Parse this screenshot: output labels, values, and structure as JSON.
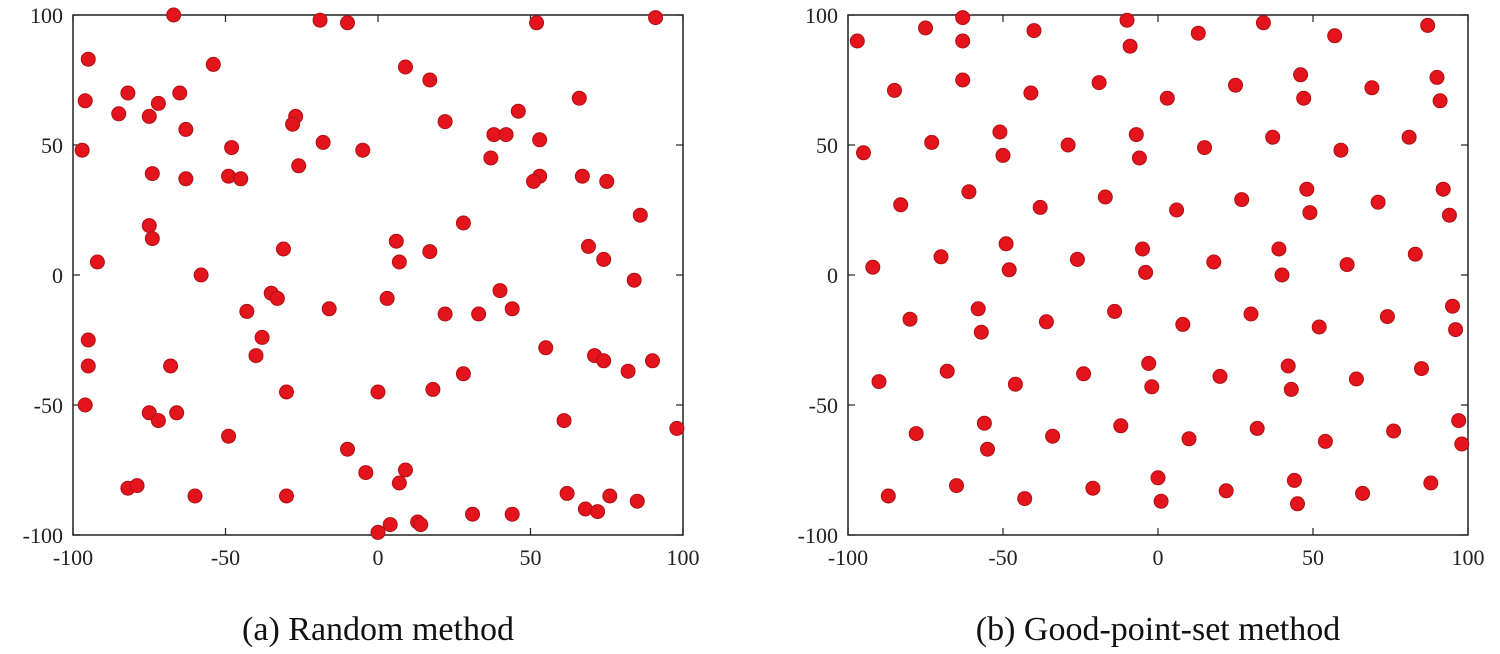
{
  "chart_data": [
    {
      "type": "scatter",
      "title": "(a) Random method",
      "color": "#e3141c",
      "xlim": [
        -100,
        100
      ],
      "ylim": [
        -100,
        100
      ],
      "xticks": [
        -100,
        -50,
        0,
        50,
        100
      ],
      "yticks": [
        -100,
        -50,
        0,
        50,
        100
      ],
      "grid": false,
      "x": [
        -67,
        -19,
        -10,
        52,
        91,
        -95,
        -96,
        -82,
        -72,
        -75,
        -85,
        -65,
        -63,
        -54,
        -97,
        -48,
        -49,
        -45,
        -63,
        -74,
        -27,
        -28,
        -26,
        -18,
        -5,
        9,
        17,
        22,
        46,
        66,
        38,
        42,
        37,
        53,
        53,
        51,
        67,
        75,
        86,
        28,
        -75,
        -74,
        -31,
        6,
        7,
        17,
        69,
        74,
        -92,
        -58,
        84,
        -35,
        -33,
        -43,
        -16,
        3,
        40,
        22,
        33,
        44,
        -38,
        -40,
        -95,
        -95,
        55,
        -68,
        -30,
        28,
        18,
        0,
        71,
        74,
        82,
        90,
        -96,
        -75,
        -72,
        -66,
        -49,
        -10,
        61,
        98,
        -4,
        9,
        7,
        -82,
        -79,
        -60,
        -30,
        62,
        76,
        85,
        68,
        72,
        31,
        44,
        13,
        14,
        4,
        0
      ],
      "values": [
        100,
        98,
        97,
        97,
        99,
        83,
        67,
        70,
        66,
        61,
        62,
        70,
        56,
        81,
        48,
        49,
        38,
        37,
        37,
        39,
        61,
        58,
        42,
        51,
        48,
        80,
        75,
        59,
        63,
        68,
        54,
        54,
        45,
        52,
        38,
        36,
        38,
        36,
        23,
        20,
        19,
        14,
        10,
        13,
        5,
        9,
        11,
        6,
        5,
        0,
        -2,
        -7,
        -9,
        -14,
        -13,
        -9,
        -6,
        -15,
        -15,
        -13,
        -24,
        -31,
        -25,
        -35,
        -28,
        -35,
        -45,
        -38,
        -44,
        -45,
        -31,
        -33,
        -37,
        -33,
        -50,
        -53,
        -56,
        -53,
        -62,
        -67,
        -56,
        -59,
        -76,
        -75,
        -80,
        -82,
        -81,
        -85,
        -85,
        -84,
        -85,
        -87,
        -90,
        -91,
        -92,
        -92,
        -95,
        -96,
        -96,
        -99
      ]
    },
    {
      "type": "scatter",
      "title": "(b) Good-point-set method",
      "color": "#e3141c",
      "xlim": [
        -100,
        100
      ],
      "ylim": [
        -100,
        100
      ],
      "xticks": [
        -100,
        -50,
        0,
        50,
        100
      ],
      "yticks": [
        -100,
        -50,
        0,
        50,
        100
      ],
      "grid": false,
      "x": [
        -97,
        -63,
        -75,
        -63,
        -40,
        -10,
        -9,
        13,
        34,
        57,
        87,
        -85,
        -63,
        -41,
        -19,
        3,
        25,
        46,
        47,
        69,
        90,
        91,
        -95,
        -73,
        -51,
        -50,
        -29,
        -7,
        -6,
        15,
        37,
        59,
        81,
        -83,
        -61,
        -38,
        -17,
        6,
        27,
        48,
        49,
        71,
        92,
        94,
        -92,
        -70,
        -49,
        -48,
        -26,
        -5,
        -4,
        18,
        39,
        40,
        61,
        83,
        95,
        96,
        -80,
        -58,
        -57,
        -36,
        -14,
        8,
        30,
        52,
        74,
        -90,
        -68,
        -46,
        -24,
        -3,
        -2,
        20,
        42,
        43,
        64,
        85,
        -78,
        -56,
        -55,
        -34,
        -12,
        10,
        32,
        54,
        76,
        97,
        98,
        -87,
        -65,
        -43,
        -21,
        0,
        1,
        22,
        44,
        45,
        66,
        88
      ],
      "values": [
        90,
        99,
        95,
        90,
        94,
        98,
        88,
        93,
        97,
        92,
        96,
        71,
        75,
        70,
        74,
        68,
        73,
        77,
        68,
        72,
        76,
        67,
        47,
        51,
        55,
        46,
        50,
        54,
        45,
        49,
        53,
        48,
        53,
        27,
        32,
        26,
        30,
        25,
        29,
        33,
        24,
        28,
        33,
        23,
        3,
        7,
        12,
        2,
        6,
        10,
        1,
        5,
        10,
        0,
        4,
        8,
        -12,
        -21,
        -17,
        -13,
        -22,
        -18,
        -14,
        -19,
        -15,
        -20,
        -16,
        -41,
        -37,
        -42,
        -38,
        -34,
        -43,
        -39,
        -35,
        -44,
        -40,
        -36,
        -61,
        -57,
        -67,
        -62,
        -58,
        -63,
        -59,
        -64,
        -60,
        -56,
        -65,
        -85,
        -81,
        -86,
        -82,
        -78,
        -87,
        -83,
        -79,
        -88,
        -84,
        -80
      ]
    }
  ]
}
